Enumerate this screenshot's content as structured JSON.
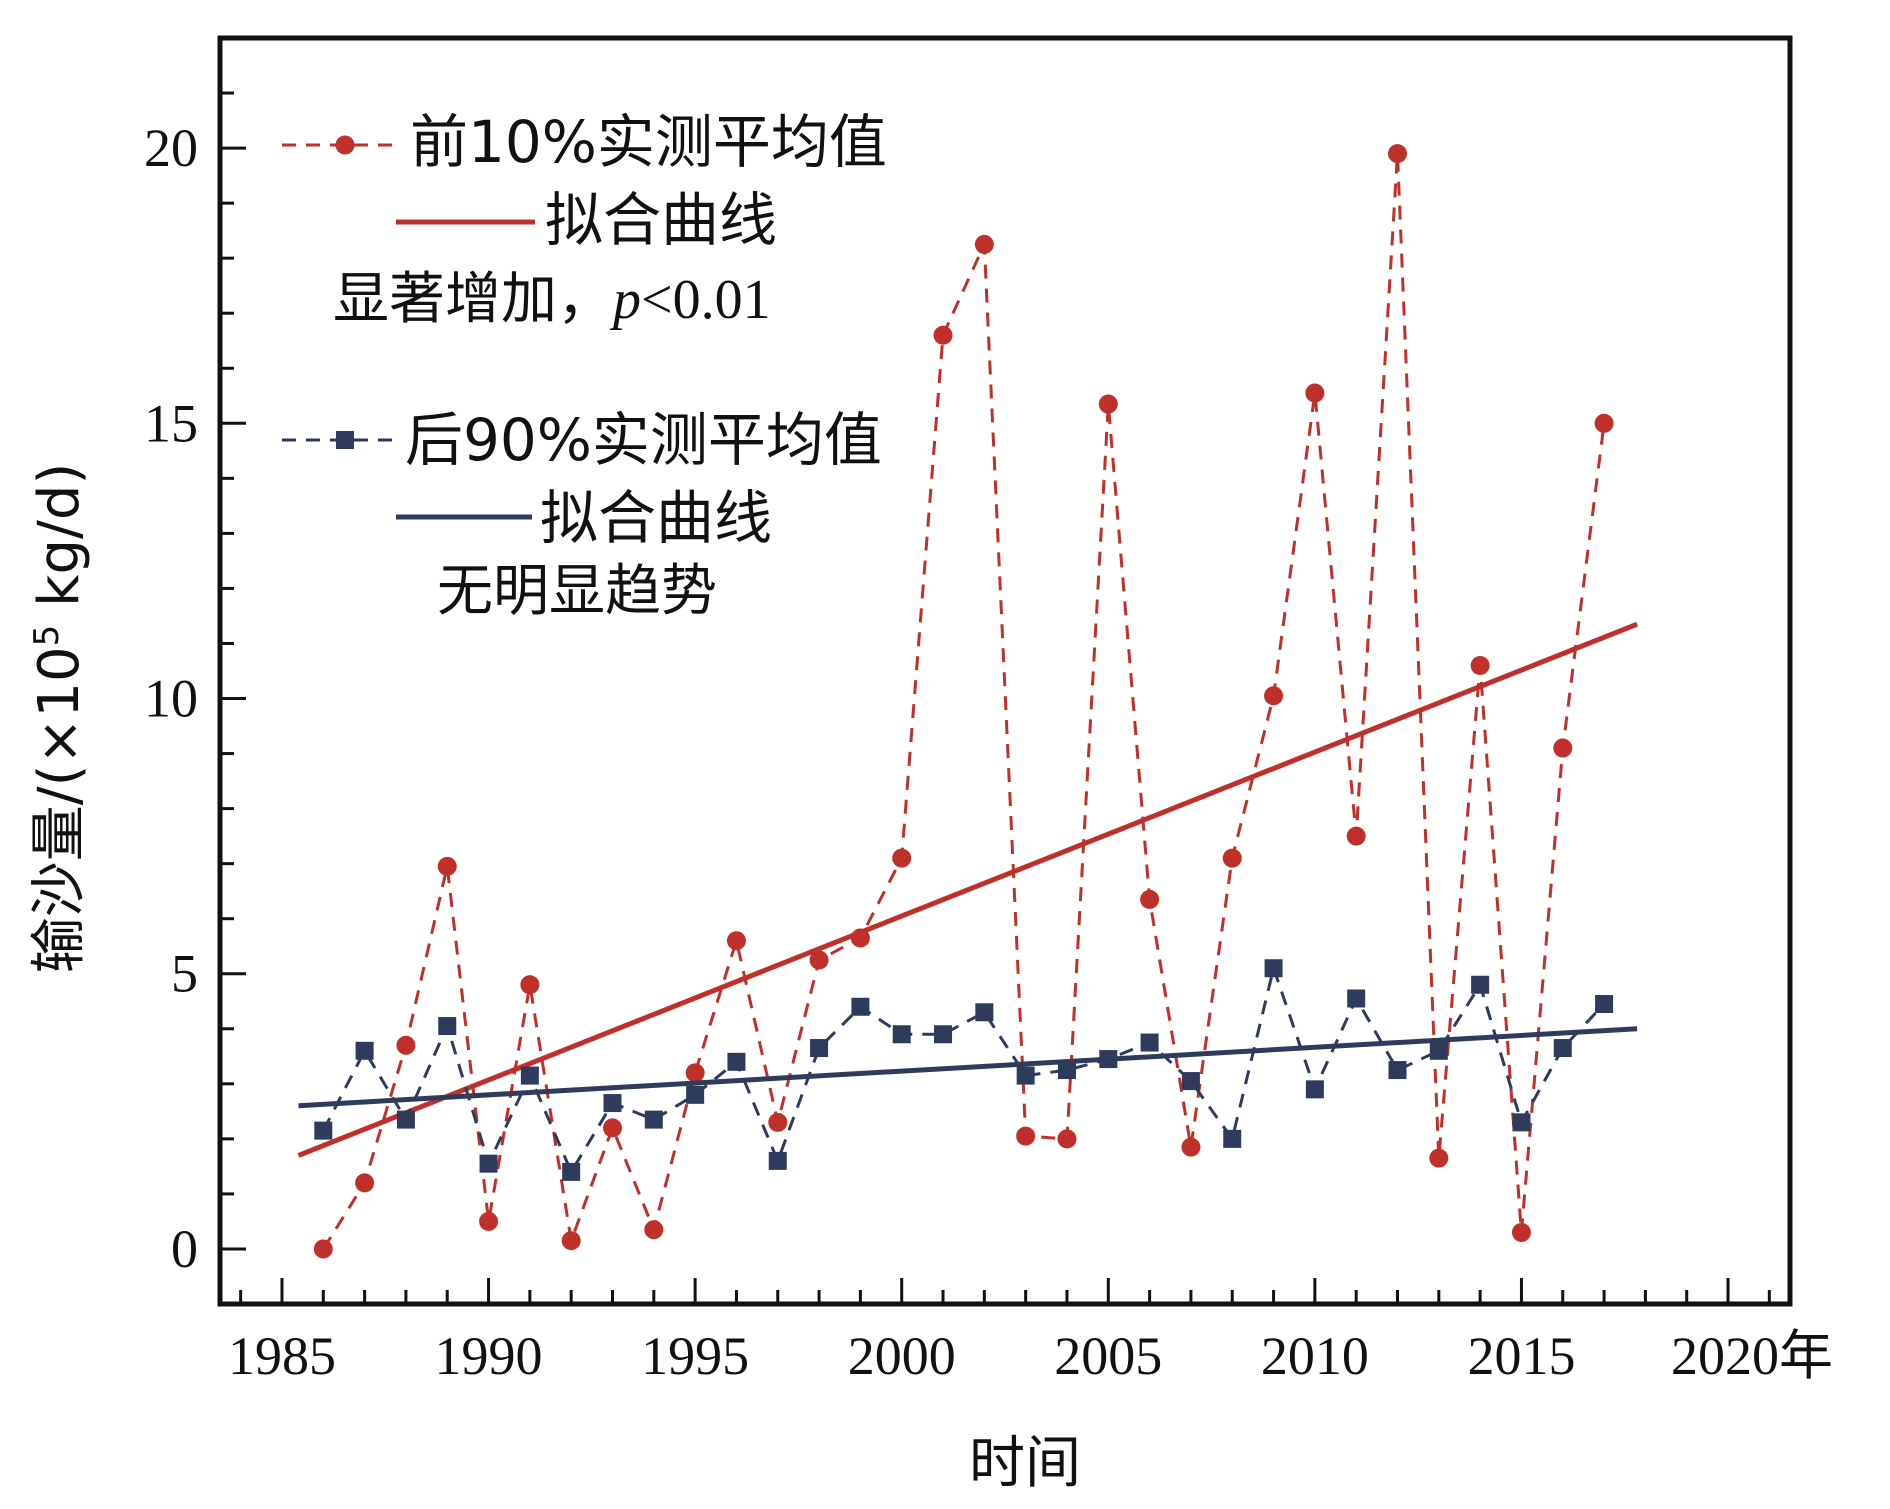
{
  "chart_data": {
    "type": "line",
    "title": "",
    "xlabel": "时间",
    "ylabel": "输沙量/(×10⁵ kg/d)",
    "ylabel_parts": {
      "prefix": "输沙量/(×10",
      "sup": "5",
      "suffix": " kg/d)"
    },
    "x_unit_suffix": "年",
    "xlim": [
      1983.5,
      2021.5
    ],
    "ylim": [
      -1,
      22
    ],
    "x_ticks": [
      1985,
      1990,
      1995,
      2000,
      2005,
      2010,
      2015,
      2020
    ],
    "y_ticks": [
      0,
      5,
      10,
      15,
      20
    ],
    "grid": false,
    "legend_position": "top-left",
    "series": [
      {
        "name": "前10%实测平均值",
        "color": "#c0302b",
        "style": "dashed",
        "marker": "circle",
        "x": [
          1986,
          1987,
          1988,
          1989,
          1990,
          1991,
          1992,
          1993,
          1994,
          1995,
          1996,
          1997,
          1998,
          1999,
          2000,
          2001,
          2002,
          2003,
          2004,
          2005,
          2006,
          2007,
          2008,
          2009,
          2010,
          2011,
          2012,
          2013,
          2014,
          2015,
          2016,
          2017
        ],
        "y": [
          0.0,
          1.2,
          3.7,
          6.95,
          0.5,
          4.8,
          0.15,
          2.2,
          0.35,
          3.2,
          5.6,
          2.3,
          5.25,
          5.65,
          7.1,
          16.6,
          18.25,
          2.05,
          2.0,
          15.35,
          6.35,
          1.85,
          7.1,
          10.05,
          15.55,
          7.5,
          19.9,
          1.65,
          10.6,
          0.3,
          9.1,
          15.0
        ]
      },
      {
        "name": "拟合曲线",
        "color": "#c0302b",
        "style": "solid",
        "marker": "none",
        "x": [
          1985.4,
          2017.8
        ],
        "y": [
          1.7,
          11.35
        ]
      },
      {
        "name": "后90%实测平均值",
        "color": "#2f3b5c",
        "style": "dashed",
        "marker": "square",
        "x": [
          1986,
          1987,
          1988,
          1989,
          1990,
          1991,
          1992,
          1993,
          1994,
          1995,
          1996,
          1997,
          1998,
          1999,
          2000,
          2001,
          2002,
          2003,
          2004,
          2005,
          2006,
          2007,
          2008,
          2009,
          2010,
          2011,
          2012,
          2013,
          2014,
          2015,
          2016,
          2017
        ],
        "y": [
          2.15,
          3.6,
          2.35,
          4.05,
          1.55,
          3.15,
          1.4,
          2.65,
          2.35,
          2.8,
          3.4,
          1.6,
          3.65,
          4.4,
          3.9,
          3.9,
          4.3,
          3.15,
          3.25,
          3.45,
          3.75,
          3.05,
          2.0,
          5.1,
          2.9,
          4.55,
          3.25,
          3.6,
          4.8,
          2.3,
          3.65,
          4.45
        ]
      },
      {
        "name": "拟合曲线",
        "color": "#2f3b5c",
        "style": "solid",
        "marker": "none",
        "x": [
          1985.4,
          2017.8
        ],
        "y": [
          2.6,
          4.0
        ]
      }
    ],
    "annotations": [
      "显著增加，",
      "p",
      "<0.01",
      "无明显趋势"
    ]
  }
}
